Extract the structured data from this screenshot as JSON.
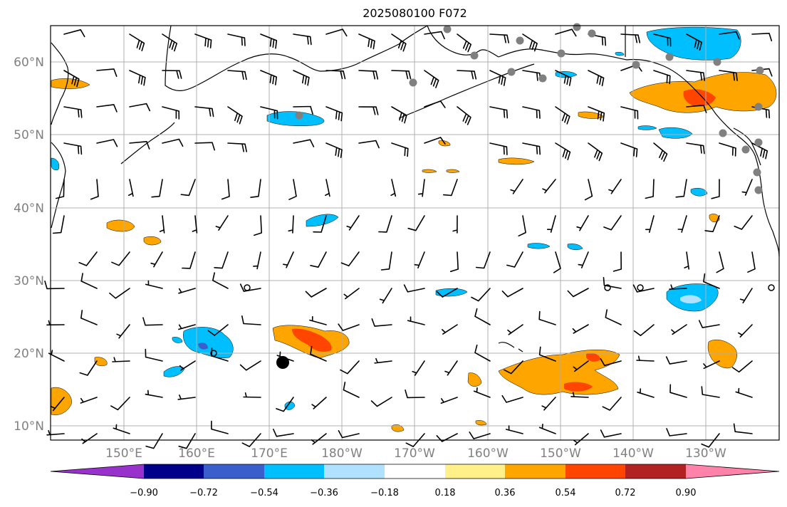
{
  "title": "2025080100 F072",
  "lat_labels": [
    "60°N",
    "50°N",
    "40°N",
    "30°N",
    "20°N",
    "10°N"
  ],
  "lon_labels": [
    "150°E",
    "160°E",
    "170°E",
    "180°W",
    "170°W",
    "160°W",
    "150°W",
    "140°W",
    "130°W"
  ],
  "colorbar": {
    "colors": [
      "#9932cc",
      "#00008b",
      "#3a5fcd",
      "#00bfff",
      "#b0e2ff",
      "#ffffff",
      "#fff08a",
      "#ffa500",
      "#ff4500",
      "#b22222",
      "#ff82ab"
    ],
    "tick_labels": [
      "−0.90",
      "−0.72",
      "−0.54",
      "−0.36",
      "−0.18",
      "0.18",
      "0.36",
      "0.54",
      "0.72",
      "0.90"
    ]
  },
  "colors": {
    "frame": "#000000",
    "grid": "#b0b0b0",
    "coast": "#000000",
    "barb": "#000000",
    "station_dot": "#808080"
  }
}
